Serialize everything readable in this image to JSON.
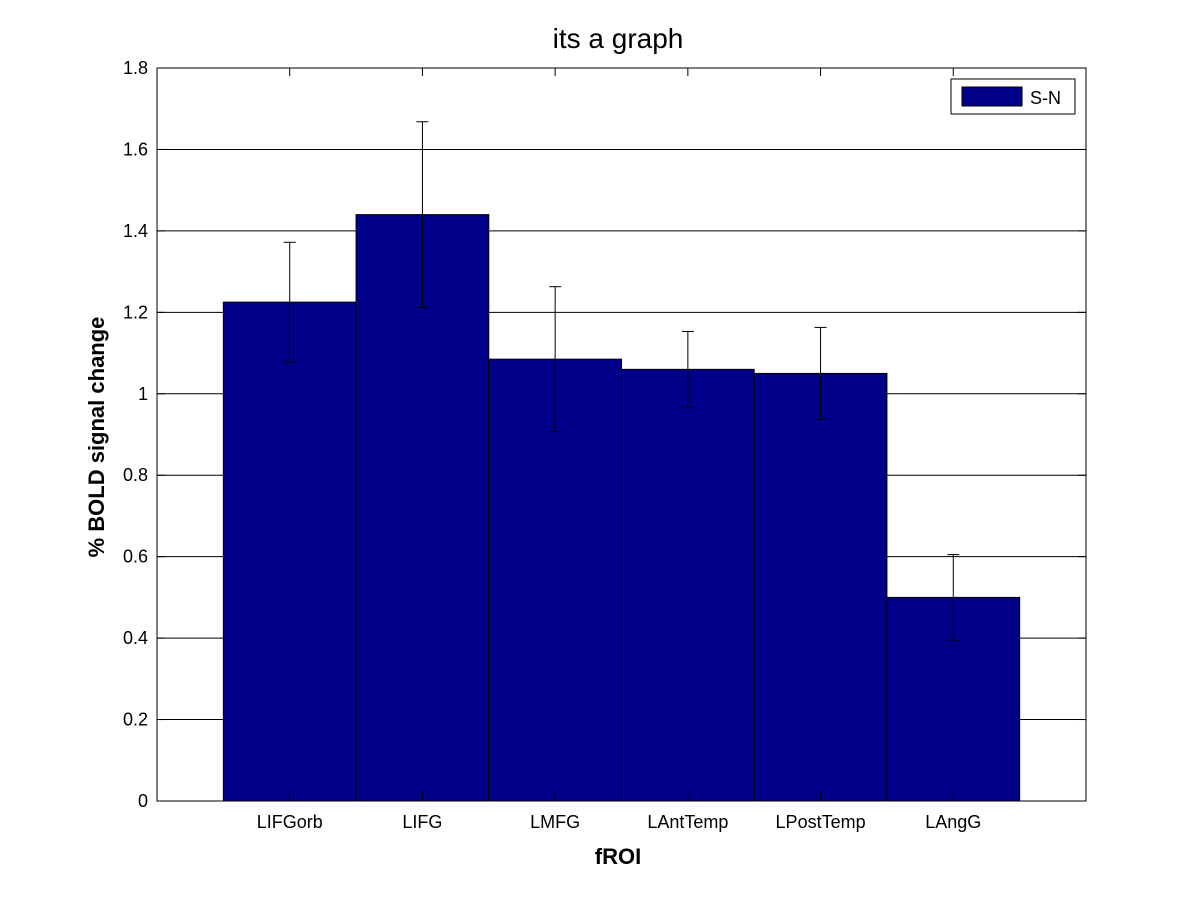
{
  "chart_data": {
    "type": "bar",
    "title": "its a graph",
    "xlabel": "fROI",
    "ylabel": "% BOLD signal change",
    "categories": [
      "LIFGorb",
      "LIFG",
      "LMFG",
      "LAntTemp",
      "LPostTemp",
      "LAngG"
    ],
    "series": [
      {
        "name": "S-N",
        "values": [
          1.225,
          1.44,
          1.085,
          1.06,
          1.05,
          0.5
        ],
        "error": [
          0.147,
          0.228,
          0.178,
          0.093,
          0.113,
          0.105
        ]
      }
    ],
    "ylim": [
      0,
      1.8
    ],
    "yticks": [
      0,
      0.2,
      0.4,
      0.6,
      0.8,
      1,
      1.2,
      1.4,
      1.6,
      1.8
    ],
    "ytick_labels": [
      "0",
      "0.2",
      "0.4",
      "0.6",
      "0.8",
      "1",
      "1.2",
      "1.4",
      "1.6",
      "1.8"
    ],
    "grid": "y-major",
    "legend_position": "top-right",
    "colors": {
      "bar": "#000088",
      "grid": "#000000",
      "axes": "#000000"
    }
  }
}
